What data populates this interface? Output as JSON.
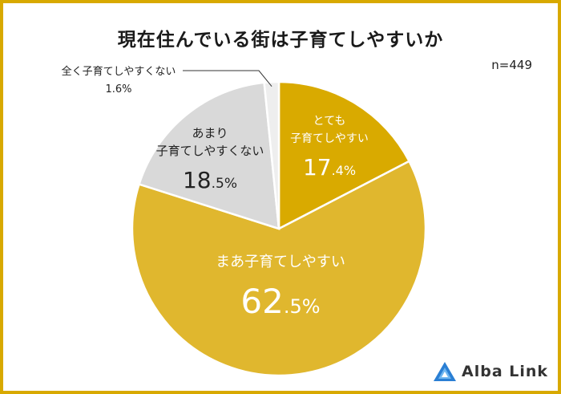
{
  "title": "現在住んでいる街は子育てしやすいか",
  "n_label": "n=449",
  "logo_text": "Alba Link",
  "colors": {
    "border": "#d8a900",
    "very_easy": "#d9aa00",
    "somewhat_easy": "#e0b72e",
    "not_very": "#d9d9d9",
    "not_at_all": "#eeeeee"
  },
  "chart_data": {
    "type": "pie",
    "title": "現在住んでいる街は子育てしやすいか",
    "slices": [
      {
        "label_lines": [
          "とても",
          "子育てしやすい"
        ],
        "value": 17.4,
        "int": "17",
        "dec": ".4%",
        "color": "#d9aa00"
      },
      {
        "label_lines": [
          "まあ子育てしやすい"
        ],
        "value": 62.5,
        "int": "62",
        "dec": ".5%",
        "color": "#e0b72e"
      },
      {
        "label_lines": [
          "あまり",
          "子育てしやすくない"
        ],
        "value": 18.5,
        "int": "18",
        "dec": ".5%",
        "color": "#d9d9d9"
      },
      {
        "label_lines": [
          "全く子育てしやすくない"
        ],
        "value": 1.6,
        "int": "",
        "dec": "1.6%",
        "color": "#eeeeee"
      }
    ]
  }
}
